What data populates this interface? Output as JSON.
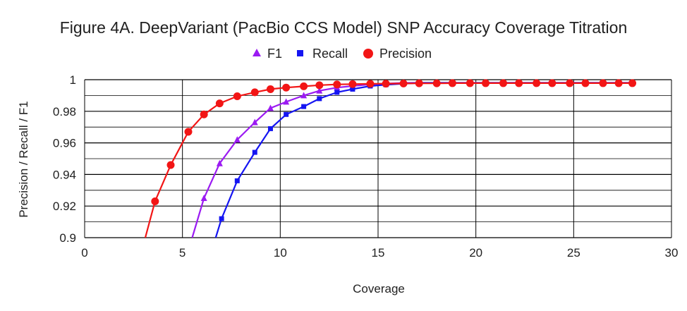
{
  "chart_data": {
    "type": "line",
    "title": "Figure 4A. DeepVariant (PacBio CCS Model) SNP Accuracy Coverage Titration",
    "xlabel": "Coverage",
    "ylabel": "Precision / Recall / F1",
    "xlim": [
      0,
      30
    ],
    "ylim": [
      0.9,
      1.0
    ],
    "xticks": [
      "0",
      "5",
      "10",
      "15",
      "20",
      "25",
      "30"
    ],
    "yticks": [
      "0.9",
      "0.92",
      "0.94",
      "0.96",
      "0.98",
      "1"
    ],
    "grid": true,
    "legend_position": "top",
    "series": [
      {
        "name": "F1",
        "color": "#9b1bf2",
        "marker": "triangle",
        "points": [
          [
            5.5,
            0.9
          ],
          [
            6.1,
            0.925
          ],
          [
            6.9,
            0.947
          ],
          [
            7.8,
            0.962
          ],
          [
            8.7,
            0.973
          ],
          [
            9.5,
            0.982
          ],
          [
            10.3,
            0.986
          ],
          [
            11.2,
            0.99
          ],
          [
            12.0,
            0.993
          ],
          [
            12.9,
            0.995
          ],
          [
            13.7,
            0.996
          ],
          [
            14.6,
            0.997
          ],
          [
            15.4,
            0.9975
          ],
          [
            16.3,
            0.998
          ],
          [
            17.1,
            0.998
          ],
          [
            18.0,
            0.998
          ],
          [
            18.8,
            0.998
          ],
          [
            19.7,
            0.998
          ],
          [
            20.5,
            0.998
          ],
          [
            21.4,
            0.998
          ],
          [
            22.2,
            0.998
          ],
          [
            23.1,
            0.998
          ],
          [
            23.9,
            0.998
          ],
          [
            24.8,
            0.998
          ],
          [
            25.6,
            0.998
          ],
          [
            26.5,
            0.998
          ],
          [
            27.3,
            0.998
          ],
          [
            28.0,
            0.998
          ]
        ]
      },
      {
        "name": "Recall",
        "color": "#1515f2",
        "marker": "square",
        "points": [
          [
            6.7,
            0.9
          ],
          [
            7.0,
            0.912
          ],
          [
            7.8,
            0.936
          ],
          [
            8.7,
            0.954
          ],
          [
            9.5,
            0.969
          ],
          [
            10.3,
            0.978
          ],
          [
            11.2,
            0.983
          ],
          [
            12.0,
            0.988
          ],
          [
            12.9,
            0.992
          ],
          [
            13.7,
            0.994
          ],
          [
            14.6,
            0.996
          ],
          [
            15.4,
            0.9968
          ],
          [
            16.3,
            0.9975
          ],
          [
            17.1,
            0.998
          ],
          [
            18.0,
            0.998
          ],
          [
            18.8,
            0.998
          ],
          [
            19.7,
            0.998
          ],
          [
            20.5,
            0.998
          ],
          [
            21.4,
            0.998
          ],
          [
            22.2,
            0.998
          ],
          [
            23.1,
            0.998
          ],
          [
            23.9,
            0.998
          ],
          [
            24.8,
            0.998
          ],
          [
            25.6,
            0.998
          ],
          [
            26.5,
            0.998
          ],
          [
            27.3,
            0.998
          ],
          [
            28.0,
            0.998
          ]
        ]
      },
      {
        "name": "Precision",
        "color": "#f21515",
        "marker": "circle",
        "points": [
          [
            3.1,
            0.9
          ],
          [
            3.6,
            0.923
          ],
          [
            4.4,
            0.946
          ],
          [
            5.3,
            0.967
          ],
          [
            6.1,
            0.978
          ],
          [
            6.9,
            0.985
          ],
          [
            7.8,
            0.9895
          ],
          [
            8.7,
            0.992
          ],
          [
            9.5,
            0.994
          ],
          [
            10.3,
            0.995
          ],
          [
            11.2,
            0.9958
          ],
          [
            12.0,
            0.9965
          ],
          [
            12.9,
            0.997
          ],
          [
            13.7,
            0.9972
          ],
          [
            14.6,
            0.9974
          ],
          [
            15.4,
            0.9975
          ],
          [
            16.3,
            0.9976
          ],
          [
            17.1,
            0.9977
          ],
          [
            18.0,
            0.9977
          ],
          [
            18.8,
            0.9978
          ],
          [
            19.7,
            0.9978
          ],
          [
            20.5,
            0.9978
          ],
          [
            21.4,
            0.9978
          ],
          [
            22.2,
            0.9978
          ],
          [
            23.1,
            0.9978
          ],
          [
            23.9,
            0.9978
          ],
          [
            24.8,
            0.9978
          ],
          [
            25.6,
            0.9978
          ],
          [
            26.5,
            0.9978
          ],
          [
            27.3,
            0.9978
          ],
          [
            28.0,
            0.9978
          ]
        ]
      }
    ]
  }
}
